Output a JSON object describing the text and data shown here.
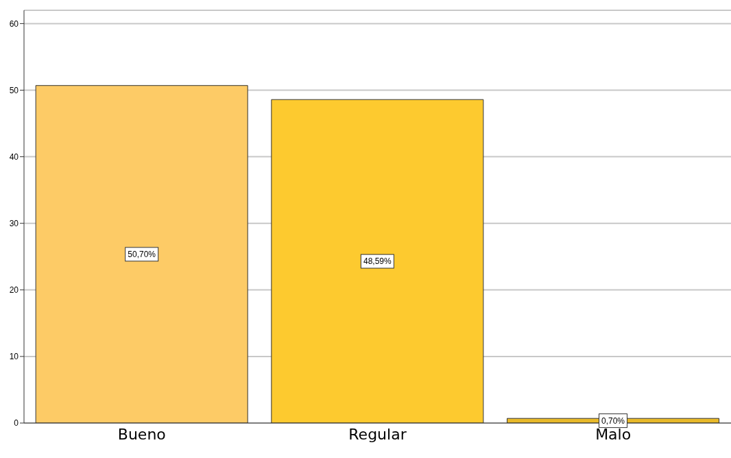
{
  "chart_data": {
    "type": "bar",
    "categories": [
      "Bueno",
      "Regular",
      "Malo"
    ],
    "values": [
      50.7,
      48.59,
      0.7
    ],
    "colors": [
      "#fdcb66",
      "#fdca2f",
      "#e8b92a"
    ],
    "value_labels": [
      "50,70%",
      "48,59%",
      "0,70%"
    ],
    "ylim": [
      0,
      62
    ],
    "yticks": [
      0,
      10,
      20,
      30,
      40,
      50,
      60
    ],
    "grid": "y"
  }
}
